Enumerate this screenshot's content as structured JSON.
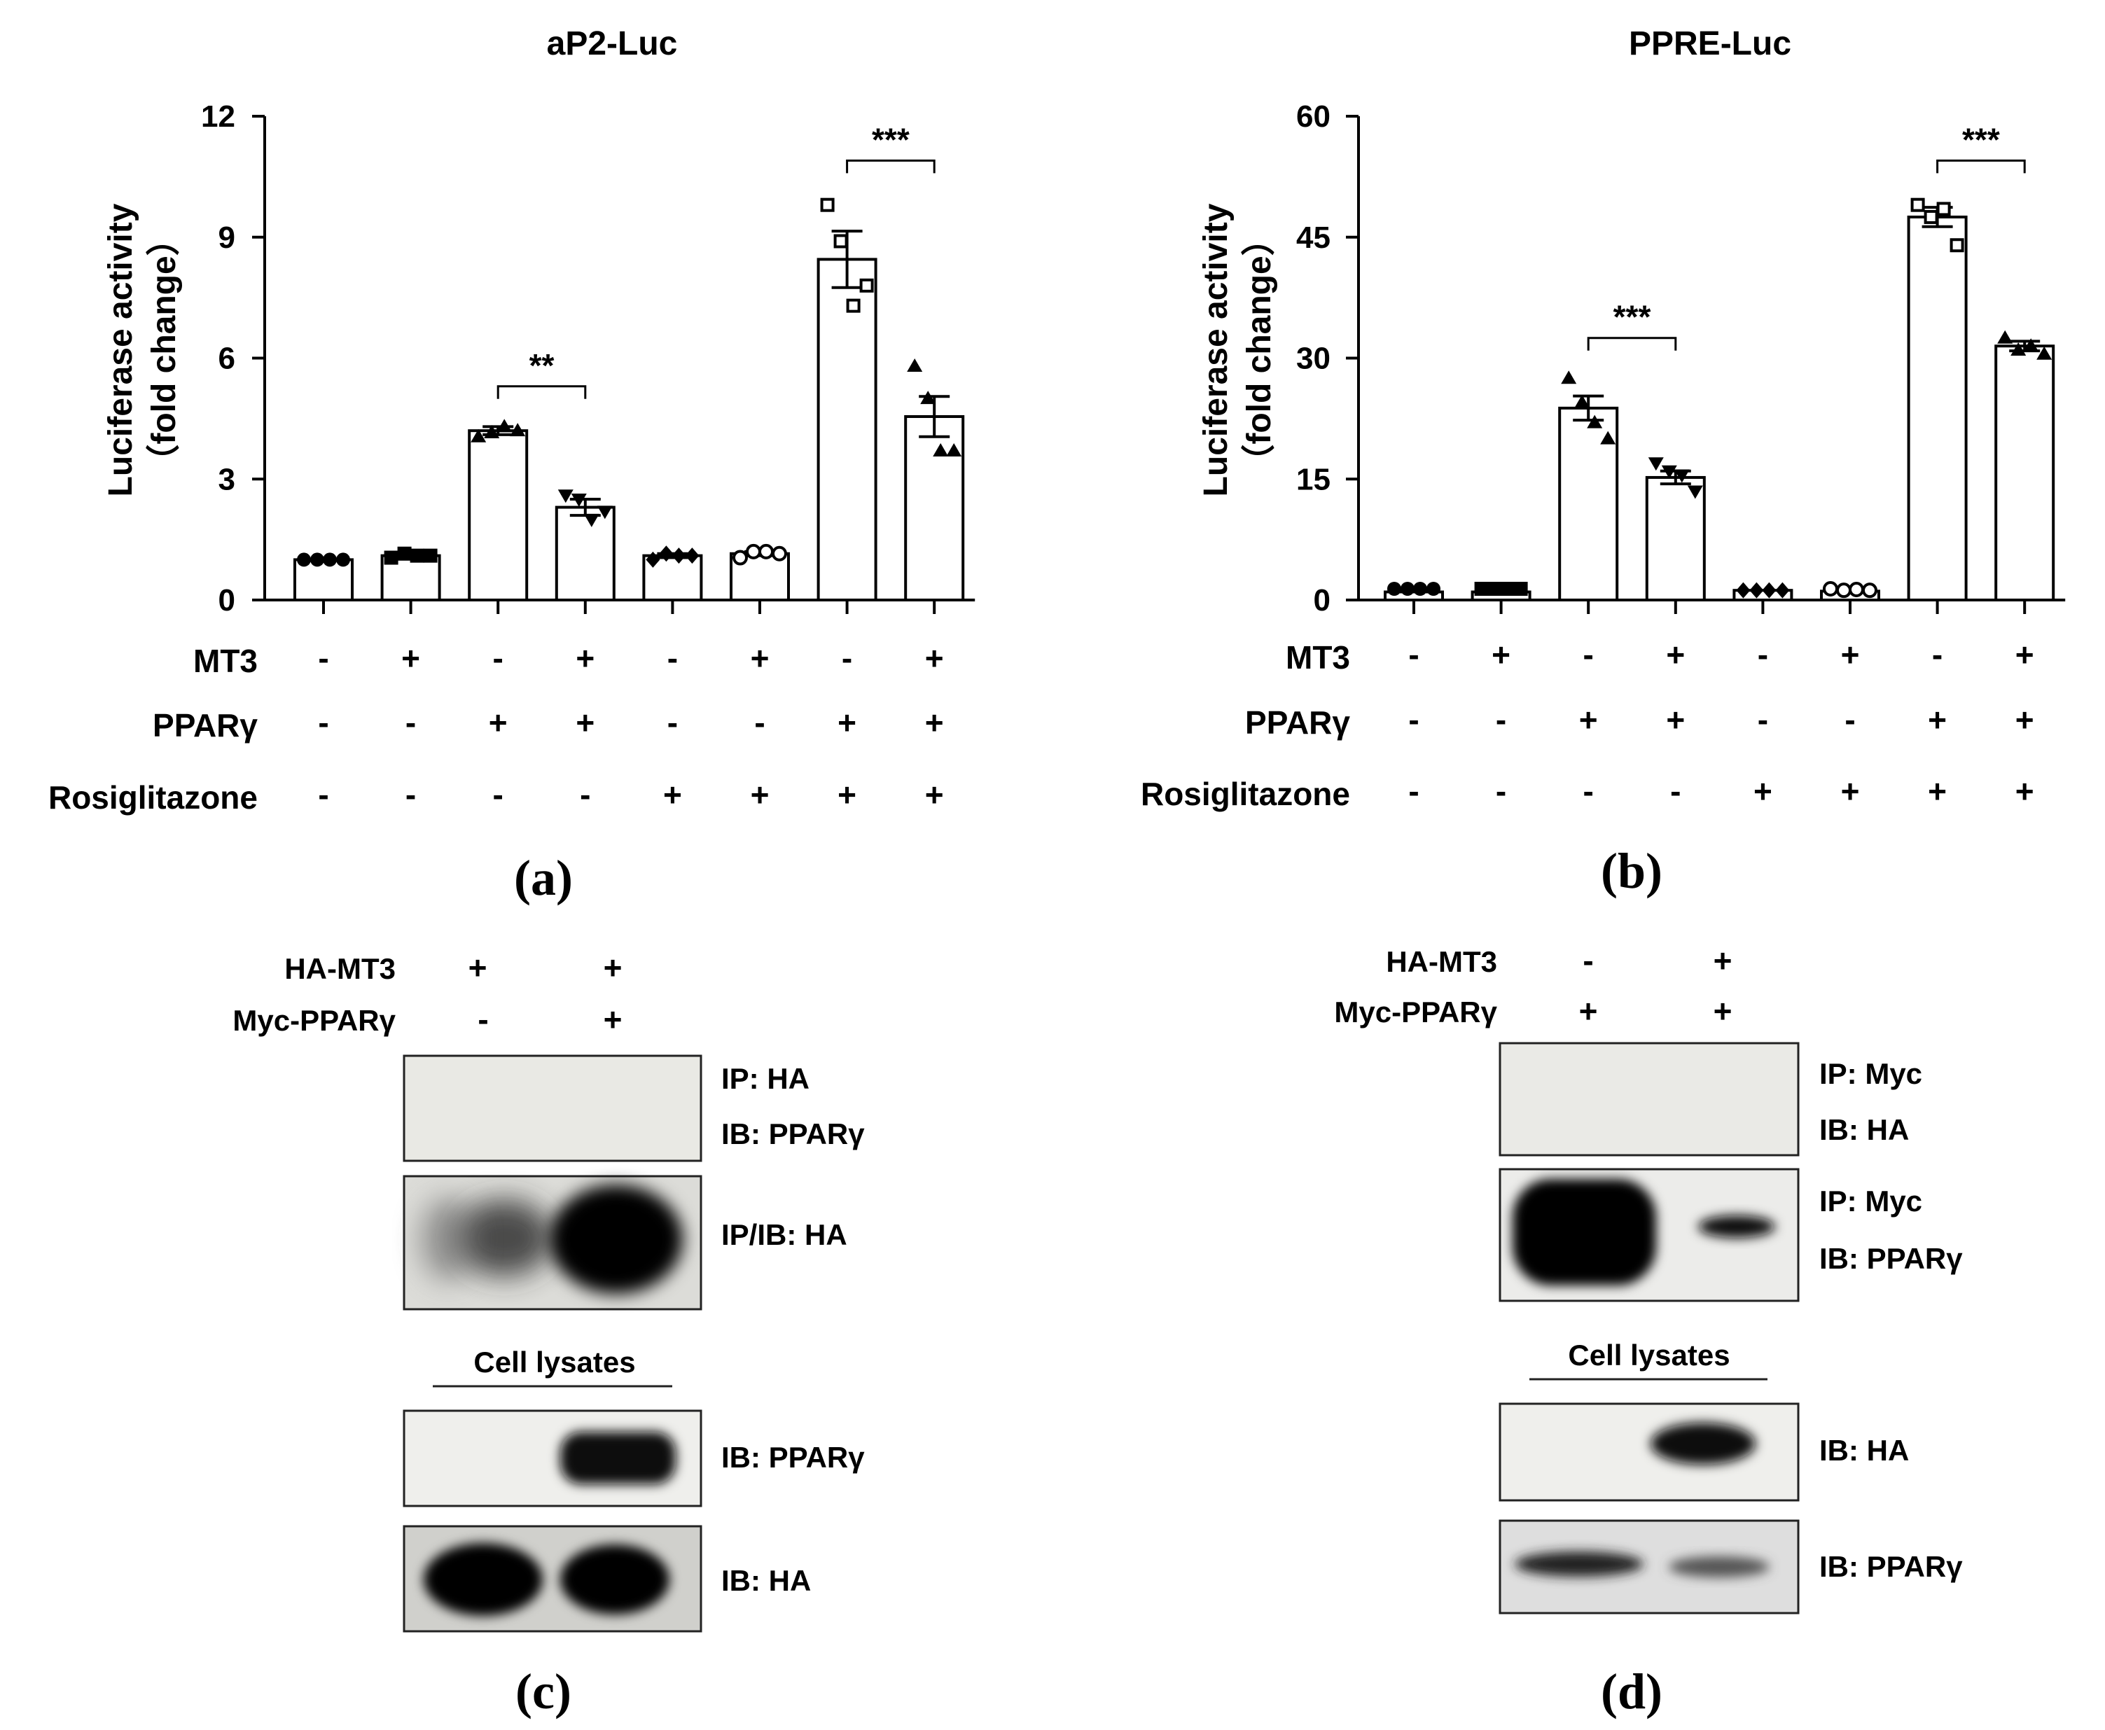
{
  "chart_data": [
    {
      "type": "bar",
      "panel": "(a)",
      "title": "aP2-Luc",
      "ylabel_line1": "Luciferase activity",
      "ylabel_line2": "（fold change）",
      "ylim": [
        0,
        12
      ],
      "yticks": [
        "0",
        "3",
        "6",
        "9",
        "12"
      ],
      "values": [
        1.0,
        1.1,
        4.2,
        2.3,
        1.1,
        1.15,
        8.45,
        4.55
      ],
      "sem": [
        0.0,
        0.05,
        0.1,
        0.2,
        0.05,
        0.05,
        0.7,
        0.5
      ],
      "points": [
        [
          1.0,
          1.0,
          1.0,
          1.0
        ],
        [
          1.05,
          1.15,
          1.1,
          1.1
        ],
        [
          4.05,
          4.15,
          4.3,
          4.2
        ],
        [
          2.6,
          2.5,
          2.0,
          2.2
        ],
        [
          1.0,
          1.15,
          1.1,
          1.1
        ],
        [
          1.05,
          1.2,
          1.2,
          1.15
        ],
        [
          9.8,
          8.9,
          7.3,
          7.8
        ],
        [
          5.8,
          5.0,
          3.7,
          3.7
        ]
      ],
      "markers": [
        "circle-filled",
        "square-filled",
        "triangle-up",
        "triangle-down",
        "diamond-filled",
        "circle-open",
        "square-open",
        "triangle-up"
      ],
      "significance": [
        {
          "from": 2,
          "to": 3,
          "label": "**",
          "y": 5.3
        },
        {
          "from": 6,
          "to": 7,
          "label": "***",
          "y": 10.9
        }
      ],
      "conditions": {
        "rows": [
          "MT3",
          "PPARγ",
          "Rosiglitazone"
        ],
        "values": [
          [
            "-",
            "+",
            "-",
            "+",
            "-",
            "+",
            "-",
            "+"
          ],
          [
            "-",
            "-",
            "+",
            "+",
            "-",
            "-",
            "+",
            "+"
          ],
          [
            "-",
            "-",
            "-",
            "-",
            "+",
            "+",
            "+",
            "+"
          ]
        ]
      }
    },
    {
      "type": "bar",
      "panel": "(b)",
      "title": "PPRE-Luc",
      "ylabel_line1": "Luciferase activity",
      "ylabel_line2": "（fold change）",
      "ylim": [
        0,
        60
      ],
      "yticks": [
        "0",
        "15",
        "30",
        "45",
        "60"
      ],
      "values": [
        1.0,
        1.0,
        23.8,
        15.2,
        1.2,
        1.1,
        47.5,
        31.5
      ],
      "sem": [
        0.0,
        0.0,
        1.5,
        0.8,
        0.0,
        0.0,
        1.2,
        0.6
      ],
      "points": [
        [
          1.0,
          1.0,
          1.0,
          1.0
        ],
        [
          1.0,
          1.0,
          1.0,
          1.0
        ],
        [
          27.5,
          24.5,
          22.0,
          20.0
        ],
        [
          17.0,
          16.0,
          15.5,
          13.5
        ],
        [
          1.2,
          1.2,
          1.2,
          1.2
        ],
        [
          1.0,
          1.2,
          1.3,
          1.2
        ],
        [
          49.0,
          47.5,
          48.5,
          44.0
        ],
        [
          32.5,
          31.0,
          31.5,
          30.5
        ]
      ],
      "markers": [
        "circle-filled",
        "square-filled",
        "triangle-up",
        "triangle-down",
        "diamond-filled",
        "circle-open",
        "square-open",
        "triangle-up"
      ],
      "significance": [
        {
          "from": 2,
          "to": 3,
          "label": "***",
          "y": 32.5
        },
        {
          "from": 6,
          "to": 7,
          "label": "***",
          "y": 54.5
        }
      ],
      "conditions": {
        "rows": [
          "MT3",
          "PPARγ",
          "Rosiglitazone"
        ],
        "values": [
          [
            "-",
            "+",
            "-",
            "+",
            "-",
            "+",
            "-",
            "+"
          ],
          [
            "-",
            "-",
            "+",
            "+",
            "-",
            "-",
            "+",
            "+"
          ],
          [
            "-",
            "-",
            "-",
            "-",
            "+",
            "+",
            "+",
            "+"
          ]
        ]
      }
    }
  ],
  "blots": {
    "c": {
      "panel": "(c)",
      "header_rows": [
        {
          "label": "HA-MT3",
          "lanes": [
            "+",
            "+"
          ]
        },
        {
          "label": "Myc-PPARγ",
          "lanes": [
            "-",
            "+"
          ]
        }
      ],
      "panel1_label_1": "IP: HA",
      "panel1_label_2": "IB: PPARγ",
      "panel2_label": "IP/IB: HA",
      "lysate_header": "Cell lysates",
      "panel3_label": "IB: PPARγ",
      "panel4_label": "IB: HA"
    },
    "d": {
      "panel": "(d)",
      "header_rows": [
        {
          "label": "HA-MT3",
          "lanes": [
            "-",
            "+"
          ]
        },
        {
          "label": "Myc-PPARγ",
          "lanes": [
            "+",
            "+"
          ]
        }
      ],
      "panel1_label_1": "IP: Myc",
      "panel1_label_2": "IB: HA",
      "panel2_label_1": "IP: Myc",
      "panel2_label_2": "IB: PPARγ",
      "lysate_header": "Cell lysates",
      "panel3_label": "IB: HA",
      "panel4_label": "IB: PPARγ"
    }
  }
}
